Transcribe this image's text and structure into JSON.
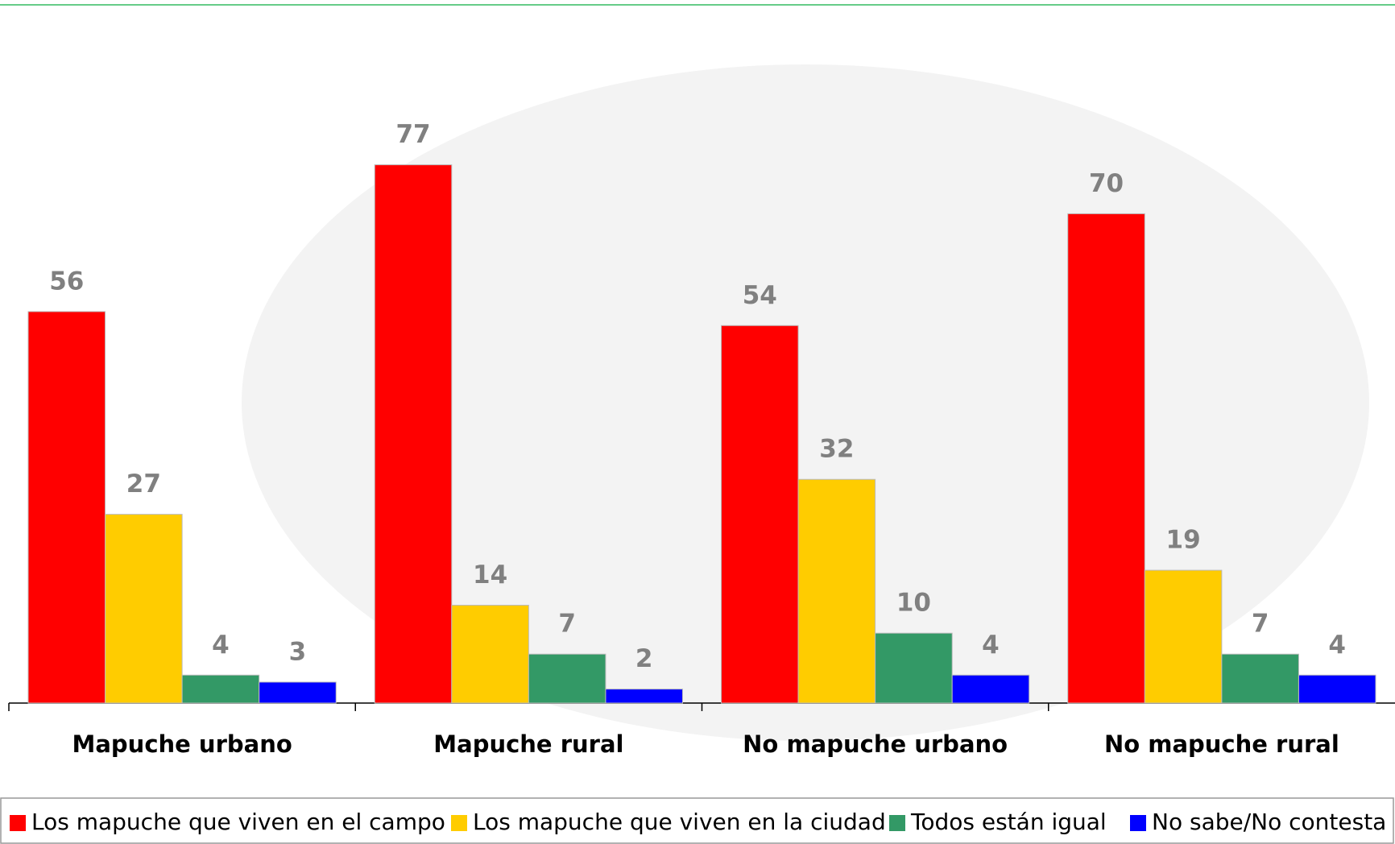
{
  "chart_data": {
    "type": "bar",
    "categories": [
      "Mapuche urbano",
      "Mapuche rural",
      "No mapuche urbano",
      "No mapuche rural"
    ],
    "series": [
      {
        "name": "Los mapuche que viven en el campo",
        "color": "#ff0000",
        "values": [
          56,
          77,
          54,
          70
        ]
      },
      {
        "name": "Los mapuche que viven en la ciudad",
        "color": "#ffcc00",
        "values": [
          27,
          14,
          32,
          19
        ]
      },
      {
        "name": "Todos están igual",
        "color": "#339966",
        "values": [
          4,
          7,
          10,
          7
        ]
      },
      {
        "name": "No sabe/No contesta",
        "color": "#0000ff",
        "values": [
          3,
          2,
          4,
          4
        ]
      }
    ],
    "ylim": [
      0,
      100
    ],
    "legend": "bottom"
  }
}
